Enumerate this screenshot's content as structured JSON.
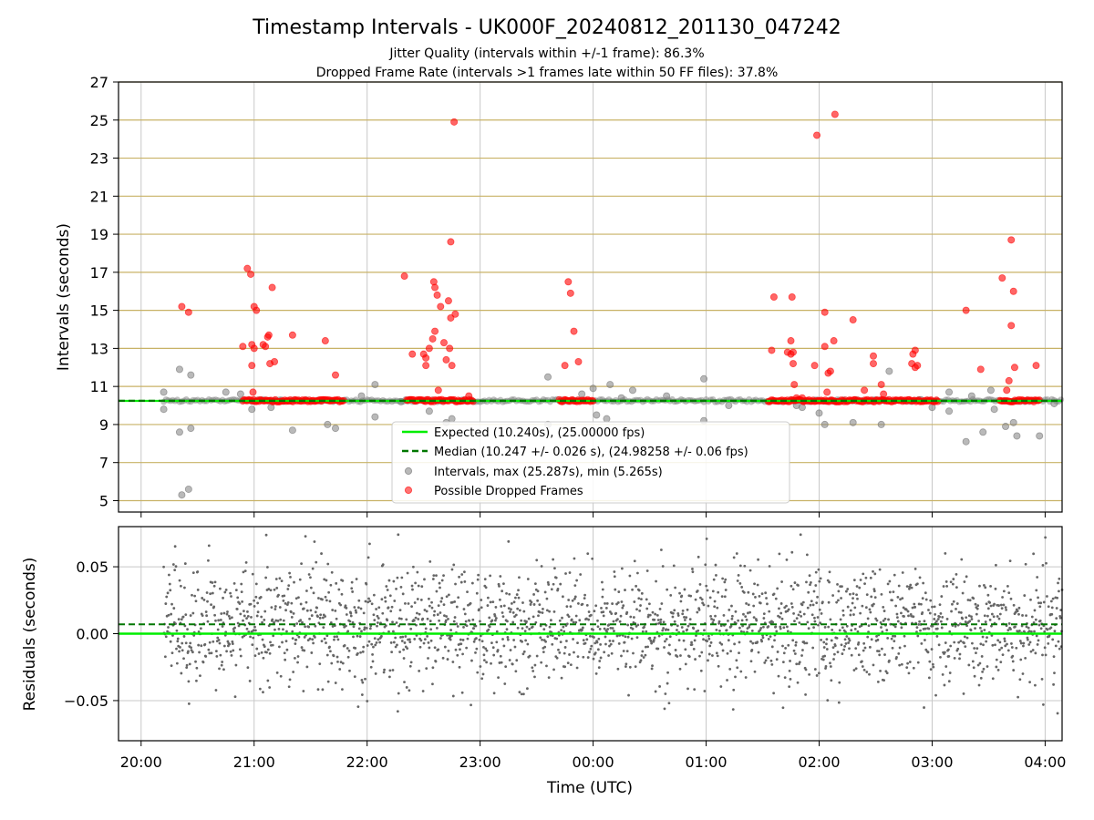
{
  "colors": {
    "expected": "#00ee00",
    "median": "#007700",
    "intervals": "#808080",
    "dropped": "#ff0000",
    "hgrid_top": "#c8b266",
    "grid": "#c8c8c8",
    "residuals": "#666666"
  },
  "chart_data": [
    {
      "type": "scatter",
      "title": "Timestamp Intervals - UK000F_20240812_201130_047242",
      "subtitle_lines": [
        "Jitter Quality (intervals within +/-1 frame): 86.3%",
        "Dropped Frame Rate (intervals >1 frames late within 50 FF files): 37.8%"
      ],
      "xlabel": "",
      "ylabel": "Intervals (seconds)",
      "x_unit": "hours since 20:00 UTC",
      "xlim": [
        -0.2,
        8.15
      ],
      "ylim": [
        4.4,
        27
      ],
      "yticks": [
        5,
        7,
        9,
        11,
        13,
        15,
        17,
        19,
        21,
        23,
        25,
        27
      ],
      "grid": "horizontal gold lines at odd integers, vertical grey lines at each hour",
      "legend_position": "lower-center",
      "legend": {
        "expected": "Expected (10.240s), (25.00000 fps)",
        "median": "Median (10.247 +/- 0.026 s), (24.98258 +/- 0.06 fps)",
        "intervals": "Intervals, max (25.287s), min (5.265s)",
        "dropped": "Possible Dropped Frames"
      },
      "expected_y": 10.24,
      "median_y": 10.247,
      "interval_band": {
        "x_start": 0.2,
        "x_end": 8.15,
        "y_low": 10.18,
        "y_high": 10.33
      },
      "dropped_clusters": [
        {
          "x_start": 0.9,
          "x_end": 1.6,
          "y": 10.25
        },
        {
          "x_start": 1.6,
          "x_end": 1.8,
          "y": 10.25
        },
        {
          "x_start": 2.35,
          "x_end": 2.95,
          "y": 10.25
        },
        {
          "x_start": 3.7,
          "x_end": 4.0,
          "y": 10.25
        },
        {
          "x_start": 5.55,
          "x_end": 7.05,
          "y": 10.25
        },
        {
          "x_start": 7.6,
          "x_end": 7.95,
          "y": 10.25
        }
      ],
      "interval_outliers": [
        {
          "x": 0.2,
          "y": 10.7
        },
        {
          "x": 0.2,
          "y": 9.8
        },
        {
          "x": 0.34,
          "y": 11.9
        },
        {
          "x": 0.34,
          "y": 8.6
        },
        {
          "x": 0.36,
          "y": 5.3
        },
        {
          "x": 0.44,
          "y": 11.6
        },
        {
          "x": 0.44,
          "y": 8.8
        },
        {
          "x": 0.42,
          "y": 5.6
        },
        {
          "x": 0.75,
          "y": 10.7
        },
        {
          "x": 0.88,
          "y": 10.6
        },
        {
          "x": 0.98,
          "y": 9.8
        },
        {
          "x": 1.15,
          "y": 9.9
        },
        {
          "x": 1.34,
          "y": 8.7
        },
        {
          "x": 1.65,
          "y": 9.0
        },
        {
          "x": 1.72,
          "y": 8.8
        },
        {
          "x": 1.95,
          "y": 10.5
        },
        {
          "x": 2.07,
          "y": 11.1
        },
        {
          "x": 2.07,
          "y": 9.4
        },
        {
          "x": 2.3,
          "y": 10.2
        },
        {
          "x": 2.55,
          "y": 9.7
        },
        {
          "x": 2.7,
          "y": 9.1
        },
        {
          "x": 2.75,
          "y": 9.3
        },
        {
          "x": 3.6,
          "y": 11.5
        },
        {
          "x": 3.6,
          "y": 9.0
        },
        {
          "x": 3.9,
          "y": 10.6
        },
        {
          "x": 4.0,
          "y": 10.9
        },
        {
          "x": 4.03,
          "y": 9.5
        },
        {
          "x": 4.12,
          "y": 9.3
        },
        {
          "x": 4.15,
          "y": 11.1
        },
        {
          "x": 4.25,
          "y": 10.4
        },
        {
          "x": 4.35,
          "y": 10.8
        },
        {
          "x": 4.65,
          "y": 10.5
        },
        {
          "x": 4.98,
          "y": 11.4
        },
        {
          "x": 4.98,
          "y": 9.2
        },
        {
          "x": 5.2,
          "y": 10.0
        },
        {
          "x": 5.8,
          "y": 10.0
        },
        {
          "x": 5.85,
          "y": 9.9
        },
        {
          "x": 6.0,
          "y": 9.6
        },
        {
          "x": 6.05,
          "y": 9.0
        },
        {
          "x": 6.3,
          "y": 9.1
        },
        {
          "x": 6.55,
          "y": 9.0
        },
        {
          "x": 6.62,
          "y": 11.8
        },
        {
          "x": 6.9,
          "y": 10.3
        },
        {
          "x": 7.0,
          "y": 9.9
        },
        {
          "x": 7.15,
          "y": 10.7
        },
        {
          "x": 7.15,
          "y": 9.7
        },
        {
          "x": 7.3,
          "y": 8.1
        },
        {
          "x": 7.35,
          "y": 10.5
        },
        {
          "x": 7.45,
          "y": 8.6
        },
        {
          "x": 7.52,
          "y": 10.8
        },
        {
          "x": 7.55,
          "y": 9.8
        },
        {
          "x": 7.65,
          "y": 8.9
        },
        {
          "x": 7.72,
          "y": 9.1
        },
        {
          "x": 7.75,
          "y": 8.4
        },
        {
          "x": 7.95,
          "y": 8.4
        },
        {
          "x": 8.08,
          "y": 10.1
        }
      ],
      "dropped_outliers": [
        {
          "x": 0.36,
          "y": 15.2
        },
        {
          "x": 0.42,
          "y": 14.9
        },
        {
          "x": 0.9,
          "y": 13.1
        },
        {
          "x": 0.94,
          "y": 17.2
        },
        {
          "x": 0.97,
          "y": 16.9
        },
        {
          "x": 0.98,
          "y": 13.2
        },
        {
          "x": 0.98,
          "y": 12.1
        },
        {
          "x": 0.99,
          "y": 10.7
        },
        {
          "x": 1.0,
          "y": 15.2
        },
        {
          "x": 1.02,
          "y": 15.0
        },
        {
          "x": 1.0,
          "y": 13.0
        },
        {
          "x": 1.08,
          "y": 13.2
        },
        {
          "x": 1.1,
          "y": 13.1
        },
        {
          "x": 1.12,
          "y": 13.6
        },
        {
          "x": 1.13,
          "y": 13.7
        },
        {
          "x": 1.14,
          "y": 12.2
        },
        {
          "x": 1.16,
          "y": 16.2
        },
        {
          "x": 1.18,
          "y": 12.3
        },
        {
          "x": 1.34,
          "y": 13.7
        },
        {
          "x": 1.63,
          "y": 13.4
        },
        {
          "x": 1.72,
          "y": 11.6
        },
        {
          "x": 2.33,
          "y": 16.8
        },
        {
          "x": 2.4,
          "y": 12.7
        },
        {
          "x": 2.5,
          "y": 12.7
        },
        {
          "x": 2.52,
          "y": 12.5
        },
        {
          "x": 2.52,
          "y": 12.1
        },
        {
          "x": 2.55,
          "y": 13.0
        },
        {
          "x": 2.58,
          "y": 13.5
        },
        {
          "x": 2.59,
          "y": 16.5
        },
        {
          "x": 2.6,
          "y": 16.2
        },
        {
          "x": 2.6,
          "y": 13.9
        },
        {
          "x": 2.62,
          "y": 15.8
        },
        {
          "x": 2.63,
          "y": 10.8
        },
        {
          "x": 2.65,
          "y": 15.2
        },
        {
          "x": 2.68,
          "y": 13.3
        },
        {
          "x": 2.7,
          "y": 12.4
        },
        {
          "x": 2.72,
          "y": 15.5
        },
        {
          "x": 2.73,
          "y": 13.0
        },
        {
          "x": 2.74,
          "y": 14.6
        },
        {
          "x": 2.75,
          "y": 12.1
        },
        {
          "x": 2.78,
          "y": 14.8
        },
        {
          "x": 2.74,
          "y": 18.6
        },
        {
          "x": 2.77,
          "y": 24.9
        },
        {
          "x": 2.9,
          "y": 10.5
        },
        {
          "x": 3.75,
          "y": 12.1
        },
        {
          "x": 3.78,
          "y": 16.5
        },
        {
          "x": 3.8,
          "y": 15.9
        },
        {
          "x": 3.83,
          "y": 13.9
        },
        {
          "x": 3.87,
          "y": 12.3
        },
        {
          "x": 5.58,
          "y": 12.9
        },
        {
          "x": 5.6,
          "y": 15.7
        },
        {
          "x": 5.72,
          "y": 12.8
        },
        {
          "x": 5.75,
          "y": 12.7
        },
        {
          "x": 5.76,
          "y": 15.7
        },
        {
          "x": 5.75,
          "y": 13.4
        },
        {
          "x": 5.77,
          "y": 12.8
        },
        {
          "x": 5.77,
          "y": 12.2
        },
        {
          "x": 5.78,
          "y": 11.1
        },
        {
          "x": 5.8,
          "y": 10.4
        },
        {
          "x": 5.85,
          "y": 10.4
        },
        {
          "x": 5.96,
          "y": 12.1
        },
        {
          "x": 5.98,
          "y": 24.2
        },
        {
          "x": 6.05,
          "y": 14.9
        },
        {
          "x": 6.05,
          "y": 13.1
        },
        {
          "x": 6.07,
          "y": 10.7
        },
        {
          "x": 6.08,
          "y": 11.7
        },
        {
          "x": 6.1,
          "y": 11.8
        },
        {
          "x": 6.13,
          "y": 13.4
        },
        {
          "x": 6.14,
          "y": 25.3
        },
        {
          "x": 6.3,
          "y": 14.5
        },
        {
          "x": 6.4,
          "y": 10.8
        },
        {
          "x": 6.48,
          "y": 12.6
        },
        {
          "x": 6.48,
          "y": 12.2
        },
        {
          "x": 6.55,
          "y": 11.1
        },
        {
          "x": 6.57,
          "y": 10.6
        },
        {
          "x": 6.82,
          "y": 12.2
        },
        {
          "x": 6.83,
          "y": 12.7
        },
        {
          "x": 6.85,
          "y": 12.9
        },
        {
          "x": 6.87,
          "y": 12.1
        },
        {
          "x": 6.85,
          "y": 12.0
        },
        {
          "x": 7.3,
          "y": 15.0
        },
        {
          "x": 7.43,
          "y": 11.9
        },
        {
          "x": 7.62,
          "y": 16.7
        },
        {
          "x": 7.7,
          "y": 18.7
        },
        {
          "x": 7.72,
          "y": 16.0
        },
        {
          "x": 7.7,
          "y": 14.2
        },
        {
          "x": 7.68,
          "y": 11.3
        },
        {
          "x": 7.73,
          "y": 12.0
        },
        {
          "x": 7.66,
          "y": 10.8
        },
        {
          "x": 7.92,
          "y": 12.1
        }
      ],
      "draw_order": [
        "interval_band",
        "interval_outliers",
        "dropped_clusters",
        "dropped_outliers",
        "median",
        "expected"
      ]
    },
    {
      "type": "scatter",
      "title": "",
      "xlabel": "Time (UTC)",
      "ylabel": "Residuals (seconds)",
      "x_unit": "hours since 20:00 UTC",
      "xlim": [
        -0.2,
        8.15
      ],
      "ylim": [
        -0.08,
        0.08
      ],
      "yticks": [
        -0.05,
        0.0,
        0.05
      ],
      "ytick_labels": [
        "−0.05",
        "0.00",
        "0.05"
      ],
      "xticks": [
        0,
        1,
        2,
        3,
        4,
        5,
        6,
        7,
        8
      ],
      "xtick_labels": [
        "20:00",
        "21:00",
        "22:00",
        "23:00",
        "00:00",
        "01:00",
        "02:00",
        "03:00",
        "04:00"
      ],
      "grid": "horizontal and vertical grey lines at ticks",
      "expected_y": 0.0,
      "median_y": 0.007,
      "residuals": {
        "x_start": 0.2,
        "x_end": 8.15,
        "count": 2200,
        "distribution": "normal",
        "mean": 0.007,
        "std_dev": 0.022,
        "max": 0.074,
        "min": -0.078
      }
    }
  ]
}
